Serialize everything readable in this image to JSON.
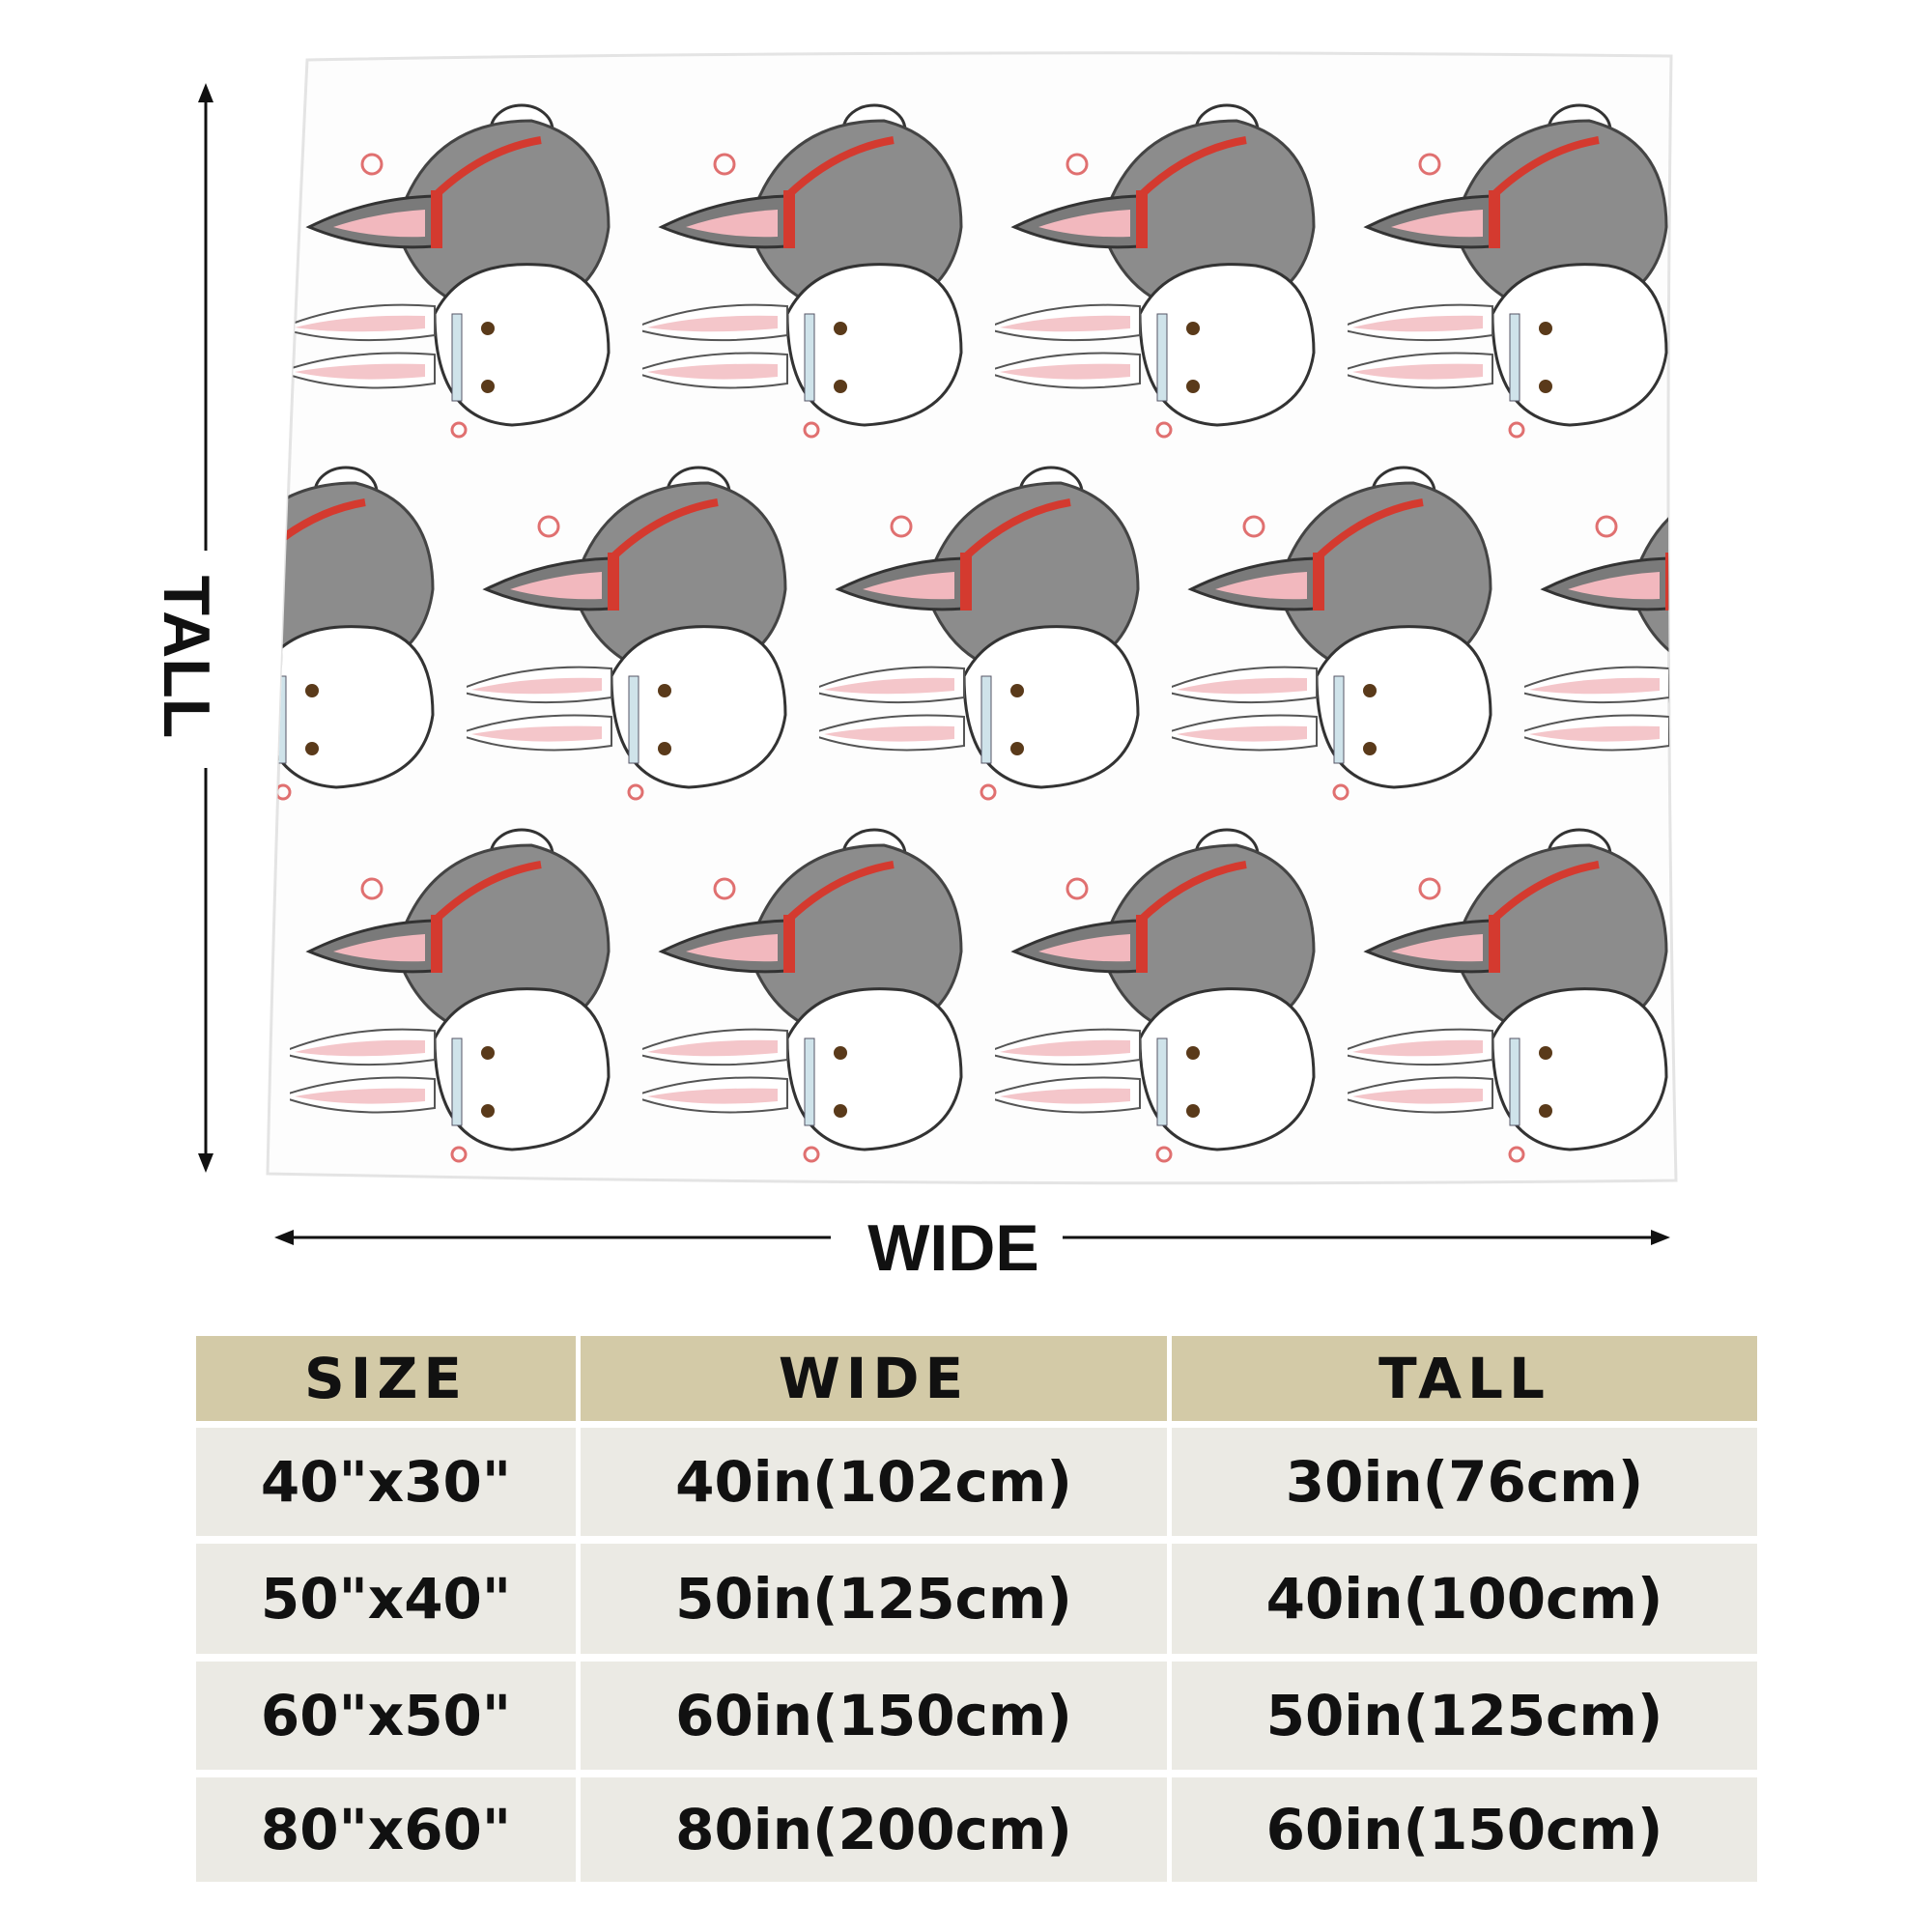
{
  "dimension_labels": {
    "tall": "TALL",
    "wide": "WIDE"
  },
  "table": {
    "header": [
      "SIZE",
      "WIDE",
      "TALL"
    ],
    "rows": [
      [
        "40\"x30\"",
        "40in(102cm)",
        "30in(76cm)"
      ],
      [
        "50\"x40\"",
        "50in(125cm)",
        "40in(100cm)"
      ],
      [
        "60\"x50\"",
        "60in(150cm)",
        "50in(125cm)"
      ],
      [
        "80\"x60\"",
        "80in(200cm)",
        "60in(150cm)"
      ]
    ]
  }
}
